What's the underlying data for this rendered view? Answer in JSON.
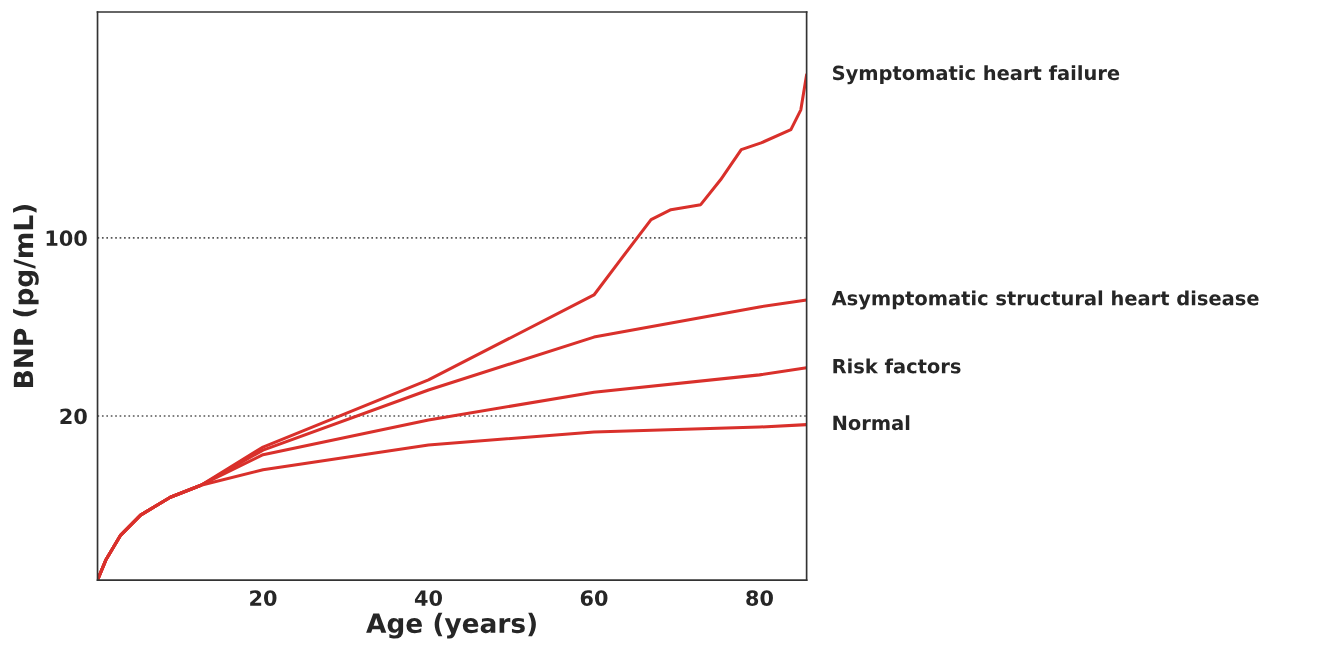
{
  "chart_data": {
    "type": "line",
    "xlabel": "Age (years)",
    "ylabel": "BNP (pg/mL)",
    "log": "y",
    "xlim": [
      0,
      85.7
    ],
    "xticks": [
      20,
      40,
      60,
      80
    ],
    "ylim": [
      4.54,
      770
    ],
    "yticks": [
      20,
      100
    ],
    "grid": "y",
    "legend": false,
    "marker": "none",
    "line_style": "solid",
    "series": [
      {
        "name": "Symptomatic heart failure",
        "color": "#d9302b",
        "x": [
          0,
          1,
          2.8,
          5.2,
          8.8,
          12.5,
          20,
          40,
          60,
          63.2,
          66.9,
          69.3,
          72.9,
          75.3,
          77.8,
          80.2,
          83.8,
          85,
          85.7
        ],
        "values": [
          4.54,
          5.44,
          6.82,
          8.17,
          9.6,
          10.7,
          15.1,
          27.7,
          59.7,
          82,
          118,
          129,
          135,
          169,
          222,
          236,
          266,
          318,
          437
        ]
      },
      {
        "name": "Asymptomatic structural heart disease",
        "color": "#d9302b",
        "x": [
          0,
          1,
          2.8,
          5.2,
          8.8,
          12.5,
          20,
          40,
          60,
          80,
          85.7
        ],
        "values": [
          4.54,
          5.44,
          6.82,
          8.17,
          9.6,
          10.7,
          14.7,
          25.3,
          40.8,
          53.6,
          57.1
        ]
      },
      {
        "name": "Risk factors",
        "color": "#d9302b",
        "x": [
          0,
          1,
          2.8,
          5.2,
          8.8,
          12.5,
          20,
          40,
          60,
          80,
          85.7
        ],
        "values": [
          4.54,
          5.44,
          6.82,
          8.17,
          9.6,
          10.7,
          14.1,
          19.3,
          24.8,
          29.0,
          30.9
        ]
      },
      {
        "name": "Normal",
        "color": "#d9302b",
        "x": [
          0,
          1,
          2.8,
          5.2,
          8.8,
          12.5,
          20,
          40,
          60,
          80,
          85.7
        ],
        "values": [
          4.54,
          5.44,
          6.82,
          8.17,
          9.6,
          10.7,
          12.3,
          15.4,
          17.3,
          18.1,
          18.5
        ]
      }
    ]
  }
}
